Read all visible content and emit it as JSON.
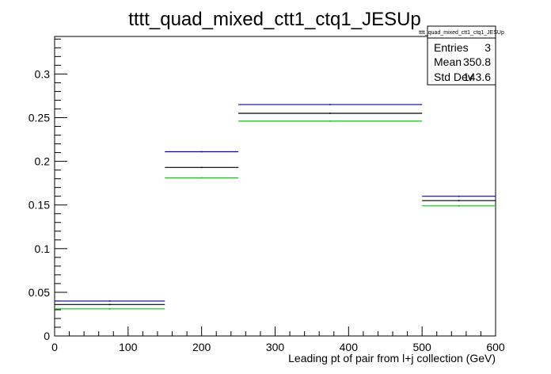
{
  "chart_data": {
    "type": "step",
    "title": "tttt_quad_mixed_ctt1_ctq1_JESUp",
    "xlabel": "Leading pt of pair from l+j collection (GeV)",
    "ylabel": "",
    "xlim": [
      0,
      600
    ],
    "ylim": [
      0,
      0.343
    ],
    "xticks": [
      0,
      100,
      200,
      300,
      400,
      500,
      600
    ],
    "xtick_labels": [
      "0",
      "100",
      "200",
      "300",
      "400",
      "500",
      "600"
    ],
    "yticks": [
      0,
      0.05,
      0.1,
      0.15,
      0.2,
      0.25,
      0.3
    ],
    "ytick_labels": [
      "0",
      "0.05",
      "0.1",
      "0.15",
      "0.2",
      "0.25",
      "0.3"
    ],
    "bin_edges": [
      0,
      150,
      250,
      500,
      600
    ],
    "series": [
      {
        "color": "#0000cc",
        "values": [
          0.04,
          0.211,
          0.265,
          0.16
        ]
      },
      {
        "color": "#000000",
        "values": [
          0.036,
          0.193,
          0.255,
          0.155
        ]
      },
      {
        "color": "#00cc00",
        "values": [
          0.031,
          0.181,
          0.246,
          0.149
        ]
      }
    ],
    "stats_box": {
      "title": "tttt_quad_mixed_ctt1_ctq1_JESUp",
      "rows": [
        {
          "label": "Entries",
          "value": "3"
        },
        {
          "label": "Mean",
          "value": "350.8"
        },
        {
          "label": "Std Dev",
          "value": "143.6"
        }
      ]
    },
    "grid": false,
    "legend": "none"
  }
}
